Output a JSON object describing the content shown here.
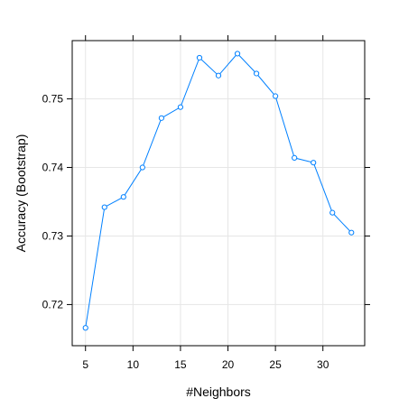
{
  "chart_data": {
    "type": "line",
    "title": "",
    "xlabel": "#Neighbors",
    "ylabel": "Accuracy (Bootstrap)",
    "xlim": [
      3.6,
      34.4
    ],
    "ylim": [
      0.714,
      0.7585
    ],
    "xticks": [
      5,
      10,
      15,
      20,
      25,
      30
    ],
    "yticks": [
      0.72,
      0.73,
      0.74,
      0.75
    ],
    "ytick_labels": [
      "0.72",
      "0.73",
      "0.74",
      "0.75"
    ],
    "grid": true,
    "series": [
      {
        "color": "#0080ff",
        "marker": "open-circle",
        "x": [
          5,
          7,
          9,
          11,
          13,
          15,
          17,
          19,
          21,
          23,
          25,
          27,
          29,
          31,
          33
        ],
        "y": [
          0.7166,
          0.7342,
          0.7357,
          0.74,
          0.7472,
          0.7488,
          0.756,
          0.7534,
          0.7566,
          0.7537,
          0.7504,
          0.7414,
          0.7407,
          0.7334,
          0.7305
        ]
      }
    ]
  }
}
